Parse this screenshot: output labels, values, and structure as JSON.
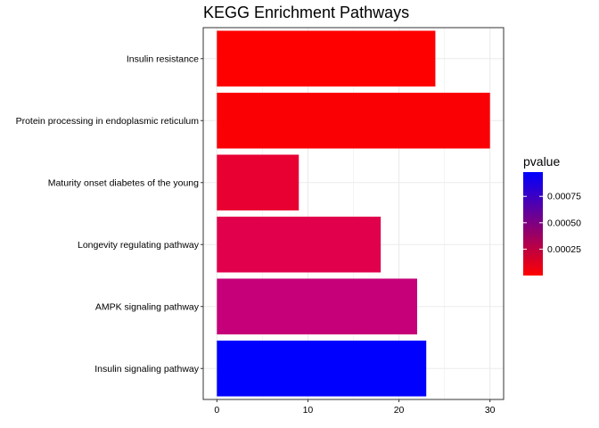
{
  "chart_data": {
    "type": "bar",
    "orientation": "horizontal",
    "title": "KEGG Enrichment Pathways",
    "xlabel": "",
    "ylabel": "",
    "categories": [
      "Insulin resistance",
      "Protein processing in endoplasmic reticulum",
      "Maturity onset diabetes of the young",
      "Longevity regulating pathway",
      "AMPK signaling pathway",
      "Insulin signaling pathway"
    ],
    "values": [
      24,
      30,
      9,
      18,
      22,
      23
    ],
    "pvalues": [
      0.0,
      2e-05,
      7e-05,
      0.00013,
      0.00048,
      0.00098
    ],
    "colors": [
      "#FF0000",
      "#FA0005",
      "#E90033",
      "#E0004B",
      "#C60078",
      "#0000FF"
    ],
    "xlim": [
      -1.5,
      31.5
    ],
    "xticks": [
      0,
      10,
      20,
      30
    ],
    "grid": true,
    "legend": {
      "title": "pvalue",
      "position": "right",
      "low_color": "#FF0000",
      "high_color": "#0000FF",
      "range": [
        0.0,
        0.00098
      ],
      "ticks": [
        0.00025,
        0.0005,
        0.00075
      ],
      "tick_labels": [
        "0.00025",
        "0.00050",
        "0.00075"
      ]
    }
  }
}
